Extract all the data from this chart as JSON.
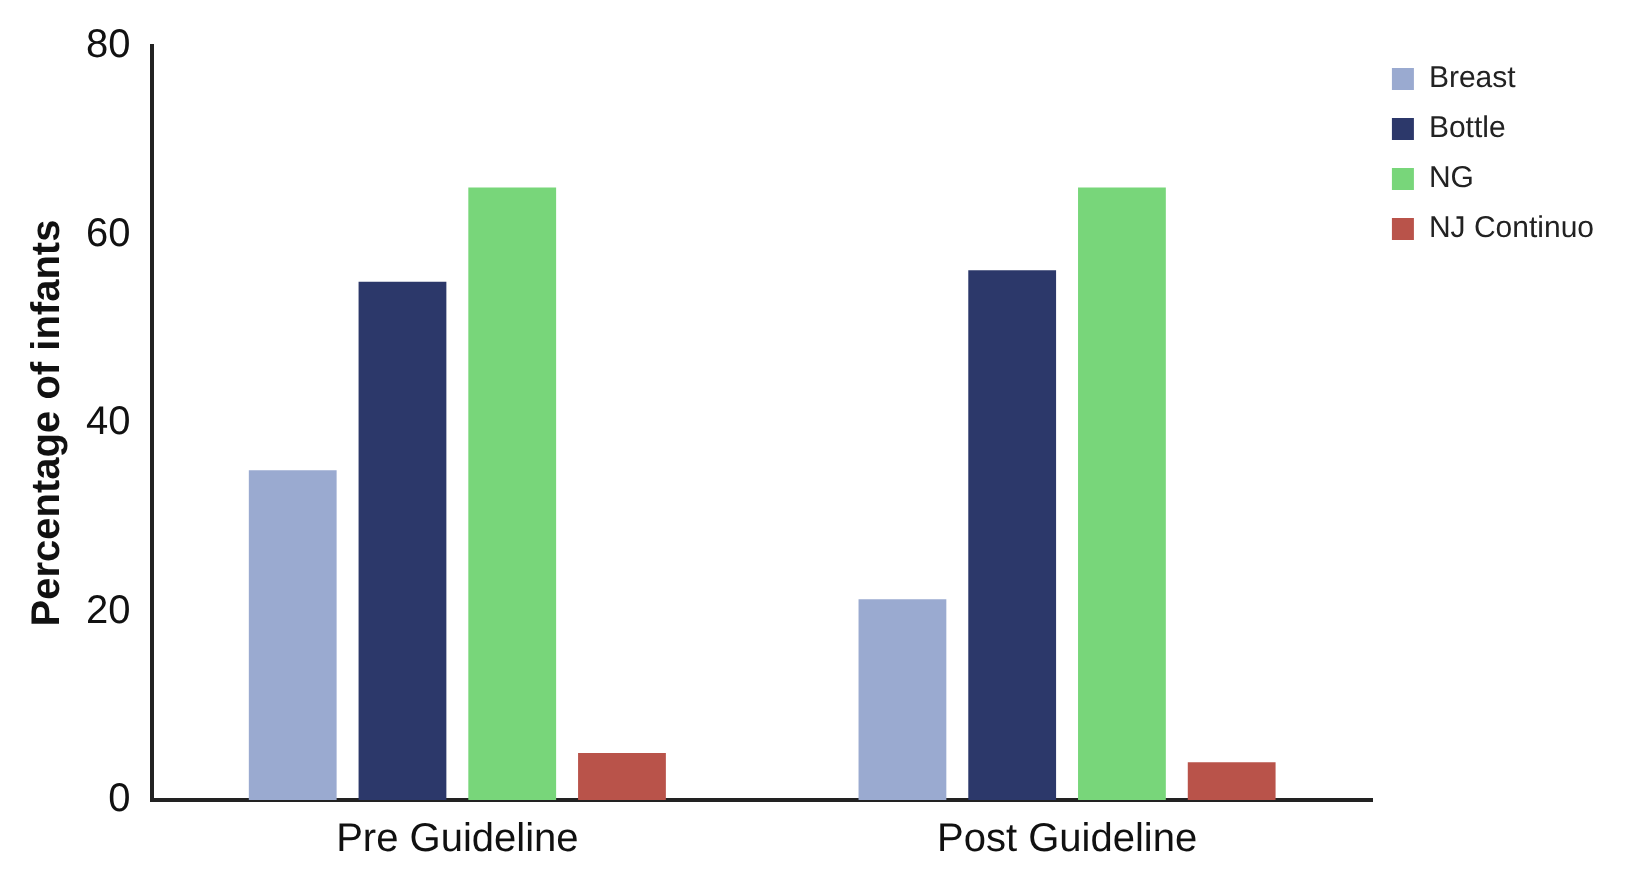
{
  "chart_data": {
    "type": "bar",
    "ylabel": "Percentage of infants",
    "categories": [
      "Pre Guideline",
      "Post Guideline"
    ],
    "series": [
      {
        "name": "Breast",
        "color": "#9aaad0",
        "values": [
          35,
          21.3
        ]
      },
      {
        "name": "Bottle",
        "color": "#2c386a",
        "values": [
          55,
          56.2
        ]
      },
      {
        "name": "NG",
        "color": "#78d67a",
        "values": [
          65,
          65
        ]
      },
      {
        "name": "NJ Continuo",
        "color": "#b9534a",
        "values": [
          5,
          4
        ]
      }
    ],
    "ylim": [
      0,
      80
    ],
    "yticks": [
      0,
      20,
      40,
      60,
      80
    ],
    "grid": false,
    "legend": "top right"
  }
}
